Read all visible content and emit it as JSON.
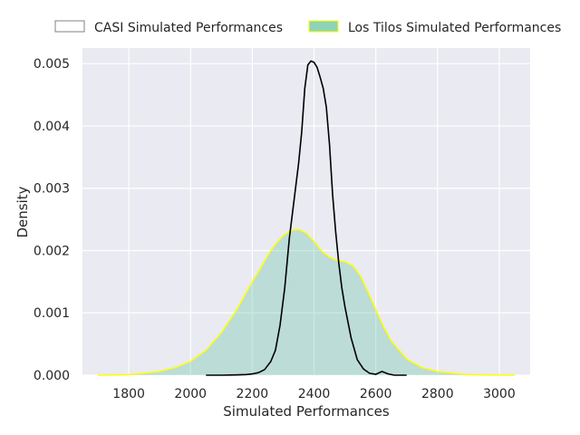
{
  "chart_data": {
    "type": "area",
    "xlabel": "Simulated Performances",
    "ylabel": "Density",
    "xlim": [
      1650,
      3100
    ],
    "ylim": [
      0,
      0.00525
    ],
    "xticks": [
      1800,
      2000,
      2200,
      2400,
      2600,
      2800,
      3000
    ],
    "yticks": [
      0.0,
      0.001,
      0.002,
      0.003,
      0.004,
      0.005
    ],
    "ytick_labels": [
      "0.000",
      "0.001",
      "0.002",
      "0.003",
      "0.004",
      "0.005"
    ],
    "grid": true,
    "legend_position": "top",
    "series": [
      {
        "name": "CASI Simulated Performances",
        "style": "line",
        "color": "#000000",
        "fill": "none",
        "points": [
          [
            2050,
            0.0
          ],
          [
            2100,
            0.0
          ],
          [
            2150,
            5e-06
          ],
          [
            2180,
            1e-05
          ],
          [
            2200,
            2e-05
          ],
          [
            2220,
            4e-05
          ],
          [
            2240,
            9e-05
          ],
          [
            2260,
            0.00022
          ],
          [
            2275,
            0.0004
          ],
          [
            2290,
            0.0008
          ],
          [
            2305,
            0.0014
          ],
          [
            2320,
            0.0022
          ],
          [
            2335,
            0.0028
          ],
          [
            2350,
            0.0034
          ],
          [
            2360,
            0.0039
          ],
          [
            2370,
            0.0046
          ],
          [
            2380,
            0.00498
          ],
          [
            2390,
            0.00504
          ],
          [
            2400,
            0.00502
          ],
          [
            2410,
            0.00494
          ],
          [
            2420,
            0.00478
          ],
          [
            2430,
            0.0046
          ],
          [
            2440,
            0.0043
          ],
          [
            2450,
            0.0037
          ],
          [
            2460,
            0.0029
          ],
          [
            2470,
            0.0023
          ],
          [
            2480,
            0.0018
          ],
          [
            2490,
            0.0014
          ],
          [
            2500,
            0.0011
          ],
          [
            2520,
            0.0006
          ],
          [
            2540,
            0.00025
          ],
          [
            2560,
            0.0001
          ],
          [
            2580,
            3e-05
          ],
          [
            2600,
            1.5e-05
          ],
          [
            2620,
            6e-05
          ],
          [
            2640,
            2e-05
          ],
          [
            2660,
            0.0
          ],
          [
            2700,
            0.0
          ]
        ]
      },
      {
        "name": "Los Tilos Simulated Performances",
        "style": "area",
        "color": "#ffff00",
        "fill": "#66c2a5",
        "points": [
          [
            1700,
            0.0
          ],
          [
            1750,
            3e-06
          ],
          [
            1800,
            1e-05
          ],
          [
            1850,
            3e-05
          ],
          [
            1900,
            6e-05
          ],
          [
            1950,
            0.00012
          ],
          [
            2000,
            0.00022
          ],
          [
            2050,
            0.0004
          ],
          [
            2100,
            0.00068
          ],
          [
            2150,
            0.00105
          ],
          [
            2200,
            0.0015
          ],
          [
            2225,
            0.0017
          ],
          [
            2250,
            0.00192
          ],
          [
            2275,
            0.0021
          ],
          [
            2300,
            0.00224
          ],
          [
            2325,
            0.00232
          ],
          [
            2350,
            0.00234
          ],
          [
            2375,
            0.00228
          ],
          [
            2400,
            0.00215
          ],
          [
            2425,
            0.00199
          ],
          [
            2450,
            0.00189
          ],
          [
            2475,
            0.00184
          ],
          [
            2500,
            0.00182
          ],
          [
            2525,
            0.00176
          ],
          [
            2550,
            0.0016
          ],
          [
            2575,
            0.00134
          ],
          [
            2600,
            0.00105
          ],
          [
            2625,
            0.00078
          ],
          [
            2650,
            0.00055
          ],
          [
            2700,
            0.00026
          ],
          [
            2750,
            0.00012
          ],
          [
            2800,
            6e-05
          ],
          [
            2850,
            3e-05
          ],
          [
            2900,
            1e-05
          ],
          [
            2950,
            4e-06
          ],
          [
            3000,
            1e-06
          ],
          [
            3050,
            0.0
          ]
        ]
      }
    ]
  }
}
